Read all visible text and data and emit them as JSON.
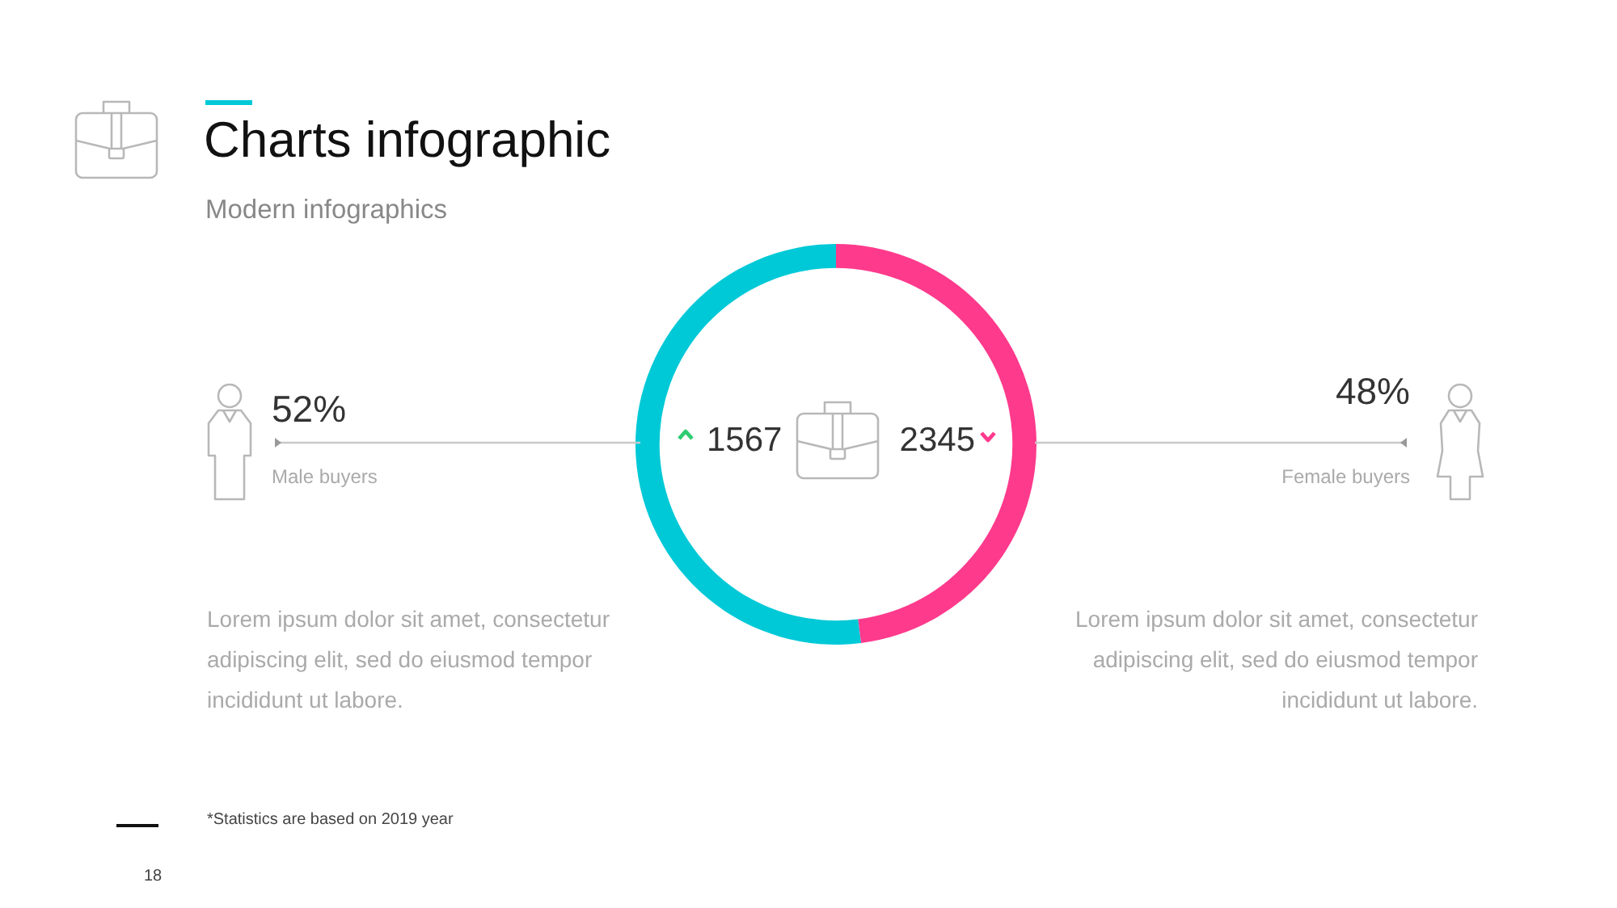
{
  "chart_data": {
    "type": "donut",
    "title": "Charts infographic",
    "subtitle": "Modern infographics",
    "categories": [
      "Male buyers",
      "Female buyers"
    ],
    "values": [
      52,
      48
    ],
    "colors": [
      "#00c9d7",
      "#fe3a8c"
    ],
    "value_labels": [
      "52%",
      "48%"
    ],
    "annotations": [
      "1567",
      "2345",
      "Lorem ipsum dolor sit amet, consectetur adipiscing elit, sed do eiusmod tempor incididunt ut labore.",
      "Lorem ipsum dolor sit amet, consectetur adipiscing elit, sed do eiusmod tempor incididunt ut labore.",
      "*Statistics are based on 2019 year",
      "18"
    ]
  }
}
